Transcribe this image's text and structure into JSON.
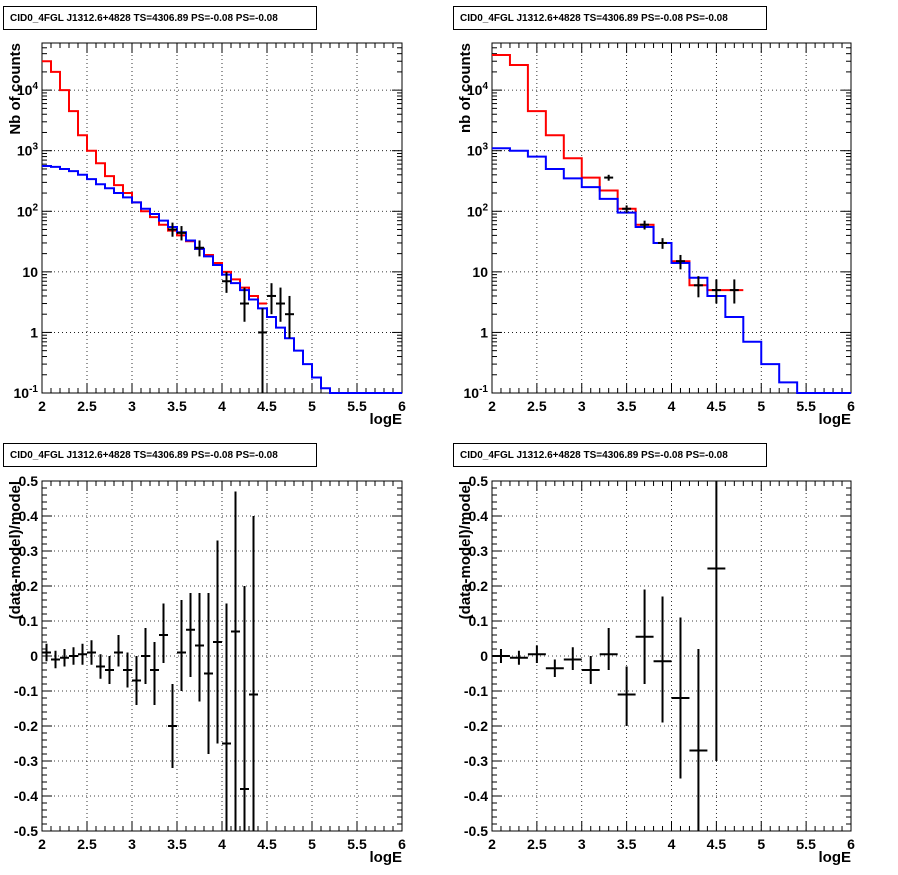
{
  "chart_data": [
    {
      "type": "line",
      "title": "CID0_4FGL J1312.6+4828 TS=4306.89 PS=-0.08 PS=-0.08",
      "xlabel": "logE",
      "ylabel": "Nb of counts",
      "xlim": [
        2,
        6
      ],
      "ylim": [
        0.1,
        60000
      ],
      "yscale": "log",
      "grid": true,
      "x_ticks": [
        "2",
        "2.5",
        "3",
        "3.5",
        "4",
        "4.5",
        "5",
        "5.5",
        "6"
      ],
      "y_ticks": [
        "10^-1",
        "1",
        "10",
        "10^2",
        "10^3",
        "10^4"
      ],
      "bin_edges": [
        2.0,
        2.1,
        2.2,
        2.3,
        2.4,
        2.5,
        2.6,
        2.7,
        2.8,
        2.9,
        3.0,
        3.1,
        3.2,
        3.3,
        3.4,
        3.5,
        3.6,
        3.7,
        3.8,
        3.9,
        4.0,
        4.1,
        4.2,
        4.3,
        4.4,
        4.5,
        4.6,
        4.7,
        4.8,
        4.9,
        5.0,
        5.1,
        5.2,
        5.3,
        5.4,
        5.5,
        5.6,
        5.7,
        5.8,
        5.9,
        6.0
      ],
      "series": [
        {
          "color": "#ff0000",
          "values": [
            30000,
            20000,
            10000,
            4500,
            1800,
            1000,
            620,
            380,
            270,
            200,
            140,
            100,
            80,
            60,
            48,
            40,
            32,
            24,
            19,
            14,
            10,
            7.5,
            5.5,
            4,
            3
          ]
        },
        {
          "color": "#0000ff",
          "values": [
            560,
            540,
            500,
            460,
            400,
            340,
            280,
            240,
            200,
            170,
            140,
            110,
            90,
            70,
            55,
            45,
            33,
            24,
            18,
            13,
            9,
            6.5,
            5,
            3.5,
            2.5,
            1.8,
            1.2,
            0.8,
            0.5,
            0.3,
            0.18,
            0.12,
            0.1,
            0.1,
            0.1,
            0.1,
            0.1,
            0.1,
            0.1,
            0.1
          ]
        }
      ],
      "points": [
        {
          "x": 3.45,
          "y": 50,
          "lo": 38,
          "hi": 65
        },
        {
          "x": 3.55,
          "y": 44,
          "lo": 33,
          "hi": 57
        },
        {
          "x": 3.75,
          "y": 25,
          "lo": 18,
          "hi": 33
        },
        {
          "x": 4.05,
          "y": 7,
          "lo": 4.5,
          "hi": 10
        },
        {
          "x": 4.25,
          "y": 3,
          "lo": 1.5,
          "hi": 5.5
        },
        {
          "x": 4.45,
          "y": 1,
          "lo": 0.1,
          "hi": 2.5
        },
        {
          "x": 4.55,
          "y": 4,
          "lo": 2,
          "hi": 6.5
        },
        {
          "x": 4.65,
          "y": 3,
          "lo": 1.5,
          "hi": 5.5
        },
        {
          "x": 4.75,
          "y": 2,
          "lo": 0.8,
          "hi": 4
        }
      ]
    },
    {
      "type": "line",
      "title": "CID0_4FGL J1312.6+4828 TS=4306.89 PS=-0.08 PS=-0.08",
      "xlabel": "logE",
      "ylabel": "nb of counts",
      "xlim": [
        2,
        6
      ],
      "ylim": [
        0.1,
        60000
      ],
      "yscale": "log",
      "grid": true,
      "x_ticks": [
        "2",
        "2.5",
        "3",
        "3.5",
        "4",
        "4.5",
        "5",
        "5.5",
        "6"
      ],
      "y_ticks": [
        "10^-1",
        "1",
        "10",
        "10^2",
        "10^3",
        "10^4"
      ],
      "bin_edges": [
        2.0,
        2.2,
        2.4,
        2.6,
        2.8,
        3.0,
        3.2,
        3.4,
        3.6,
        3.8,
        4.0,
        4.2,
        4.4,
        4.6,
        4.8,
        5.0,
        5.2,
        5.4,
        5.6,
        5.8,
        6.0
      ],
      "series": [
        {
          "color": "#ff0000",
          "values": [
            38000,
            26000,
            4500,
            1800,
            750,
            360,
            220,
            110,
            60,
            30,
            15,
            6,
            5,
            5
          ]
        },
        {
          "color": "#0000ff",
          "values": [
            1100,
            1000,
            800,
            500,
            350,
            250,
            160,
            95,
            55,
            30,
            14,
            8,
            4,
            1.8,
            0.7,
            0.3,
            0.15,
            0.1,
            0.1,
            0.1
          ]
        }
      ],
      "points": [
        {
          "x": 3.3,
          "y": 360,
          "lo": 320,
          "hi": 400
        },
        {
          "x": 3.5,
          "y": 110,
          "lo": 95,
          "hi": 125
        },
        {
          "x": 3.7,
          "y": 60,
          "lo": 50,
          "hi": 70
        },
        {
          "x": 3.9,
          "y": 30,
          "lo": 24,
          "hi": 36
        },
        {
          "x": 4.1,
          "y": 15,
          "lo": 11,
          "hi": 19
        },
        {
          "x": 4.3,
          "y": 6,
          "lo": 3.8,
          "hi": 8.5
        },
        {
          "x": 4.5,
          "y": 5,
          "lo": 3,
          "hi": 7.5
        },
        {
          "x": 4.7,
          "y": 5,
          "lo": 3,
          "hi": 7.5
        }
      ]
    },
    {
      "type": "scatter",
      "title": "CID0_4FGL J1312.6+4828 TS=4306.89 PS=-0.08 PS=-0.08",
      "xlabel": "logE",
      "ylabel": "(data-model)/model",
      "xlim": [
        2,
        6
      ],
      "ylim": [
        -0.5,
        0.5
      ],
      "grid": true,
      "x_ticks": [
        "2",
        "2.5",
        "3",
        "3.5",
        "4",
        "4.5",
        "5",
        "5.5",
        "6"
      ],
      "y_ticks": [
        "-0.5",
        "-0.4",
        "-0.3",
        "-0.2",
        "-0.1",
        "0",
        "0.1",
        "0.2",
        "0.3",
        "0.4",
        "0.5"
      ],
      "bin_width": 0.1,
      "points": [
        {
          "x": 2.05,
          "y": 0.01,
          "lo": -0.015,
          "hi": 0.035
        },
        {
          "x": 2.15,
          "y": -0.01,
          "lo": -0.035,
          "hi": 0.015
        },
        {
          "x": 2.25,
          "y": -0.005,
          "lo": -0.03,
          "hi": 0.02
        },
        {
          "x": 2.35,
          "y": 0.0,
          "lo": -0.025,
          "hi": 0.025
        },
        {
          "x": 2.45,
          "y": 0.005,
          "lo": -0.025,
          "hi": 0.035
        },
        {
          "x": 2.55,
          "y": 0.01,
          "lo": -0.025,
          "hi": 0.045
        },
        {
          "x": 2.65,
          "y": -0.03,
          "lo": -0.065,
          "hi": 0.005
        },
        {
          "x": 2.75,
          "y": -0.04,
          "lo": -0.08,
          "hi": 0.0
        },
        {
          "x": 2.85,
          "y": 0.01,
          "lo": -0.03,
          "hi": 0.06
        },
        {
          "x": 2.95,
          "y": -0.04,
          "lo": -0.09,
          "hi": 0.01
        },
        {
          "x": 3.05,
          "y": -0.07,
          "lo": -0.14,
          "hi": 0.0
        },
        {
          "x": 3.15,
          "y": 0.0,
          "lo": -0.08,
          "hi": 0.08
        },
        {
          "x": 3.25,
          "y": -0.04,
          "lo": -0.14,
          "hi": 0.04
        },
        {
          "x": 3.35,
          "y": 0.06,
          "lo": -0.02,
          "hi": 0.15
        },
        {
          "x": 3.45,
          "y": -0.2,
          "lo": -0.32,
          "hi": -0.08
        },
        {
          "x": 3.55,
          "y": 0.01,
          "lo": -0.1,
          "hi": 0.16
        },
        {
          "x": 3.65,
          "y": 0.075,
          "lo": -0.06,
          "hi": 0.18
        },
        {
          "x": 3.75,
          "y": 0.03,
          "lo": -0.13,
          "hi": 0.18
        },
        {
          "x": 3.85,
          "y": -0.05,
          "lo": -0.28,
          "hi": 0.18
        },
        {
          "x": 3.95,
          "y": 0.04,
          "lo": -0.25,
          "hi": 0.33
        },
        {
          "x": 4.05,
          "y": -0.25,
          "lo": -0.5,
          "hi": 0.15
        },
        {
          "x": 4.15,
          "y": 0.07,
          "lo": -0.5,
          "hi": 0.47
        },
        {
          "x": 4.25,
          "y": -0.38,
          "lo": -0.5,
          "hi": 0.2
        },
        {
          "x": 4.35,
          "y": -0.11,
          "lo": -0.5,
          "hi": 0.4
        }
      ]
    },
    {
      "type": "scatter",
      "title": "CID0_4FGL J1312.6+4828 TS=4306.89 PS=-0.08 PS=-0.08",
      "xlabel": "logE",
      "ylabel": "(data-model)/model",
      "xlim": [
        2,
        6
      ],
      "ylim": [
        -0.5,
        0.5
      ],
      "grid": true,
      "x_ticks": [
        "2",
        "2.5",
        "3",
        "3.5",
        "4",
        "4.5",
        "5",
        "5.5",
        "6"
      ],
      "y_ticks": [
        "-0.5",
        "-0.4",
        "-0.3",
        "-0.2",
        "-0.1",
        "0",
        "0.1",
        "0.2",
        "0.3",
        "0.4",
        "0.5"
      ],
      "bin_width": 0.2,
      "points": [
        {
          "x": 2.1,
          "y": 0.0,
          "lo": -0.02,
          "hi": 0.02
        },
        {
          "x": 2.3,
          "y": -0.005,
          "lo": -0.025,
          "hi": 0.015
        },
        {
          "x": 2.5,
          "y": 0.005,
          "lo": -0.02,
          "hi": 0.03
        },
        {
          "x": 2.7,
          "y": -0.035,
          "lo": -0.06,
          "hi": -0.01
        },
        {
          "x": 2.9,
          "y": -0.01,
          "lo": -0.04,
          "hi": 0.025
        },
        {
          "x": 3.1,
          "y": -0.04,
          "lo": -0.08,
          "hi": 0.0
        },
        {
          "x": 3.3,
          "y": 0.005,
          "lo": -0.04,
          "hi": 0.08
        },
        {
          "x": 3.5,
          "y": -0.11,
          "lo": -0.2,
          "hi": -0.03
        },
        {
          "x": 3.7,
          "y": 0.055,
          "lo": -0.08,
          "hi": 0.19
        },
        {
          "x": 3.9,
          "y": -0.015,
          "lo": -0.19,
          "hi": 0.17
        },
        {
          "x": 4.1,
          "y": -0.12,
          "lo": -0.35,
          "hi": 0.11
        },
        {
          "x": 4.3,
          "y": -0.27,
          "lo": -0.5,
          "hi": 0.02
        },
        {
          "x": 4.5,
          "y": 0.25,
          "lo": -0.3,
          "hi": 0.5
        }
      ]
    }
  ]
}
